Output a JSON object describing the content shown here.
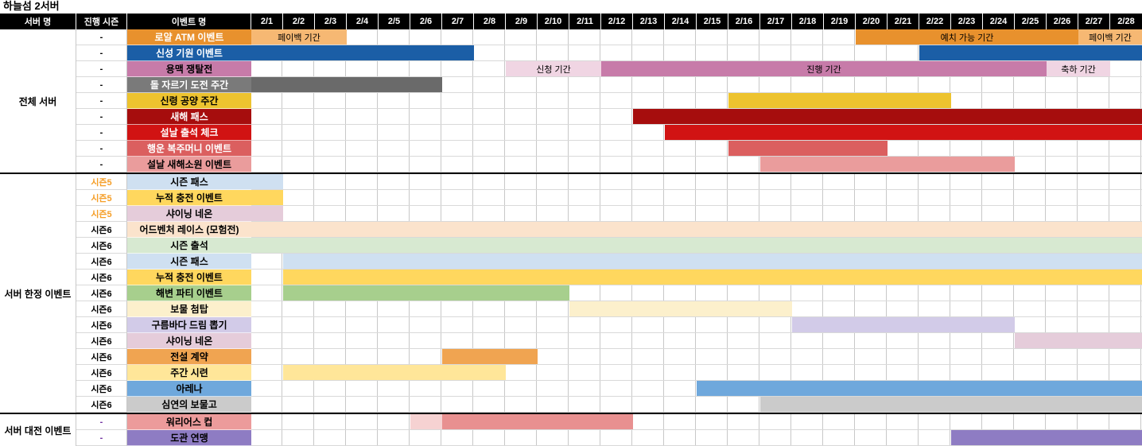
{
  "title": "하늘섬 2서버",
  "header": {
    "server": "서버 명",
    "season": "진행 시즌",
    "event": "이벤트 명"
  },
  "chart_data": {
    "type": "table",
    "subtype": "gantt",
    "day_column_width_days": 1,
    "date_columns": [
      "2/1",
      "2/2",
      "2/3",
      "2/4",
      "2/5",
      "2/6",
      "2/7",
      "2/8",
      "2/9",
      "2/10",
      "2/11",
      "2/12",
      "2/13",
      "2/14",
      "2/15",
      "2/16",
      "2/17",
      "2/18",
      "2/19",
      "2/20",
      "2/21",
      "2/22",
      "2/23",
      "2/24",
      "2/25",
      "2/26",
      "2/27",
      "2/28"
    ],
    "groups": [
      {
        "name": "전체 서버",
        "rows": [
          {
            "season": "-",
            "season_color": "#000000",
            "event": "로얄 ATM 이벤트",
            "label_bg": "#E8912D",
            "label_fg": "#FFFFFF",
            "bars": [
              {
                "start": 1,
                "end": 3,
                "color": "#F6B873",
                "label": "페이백 기간"
              },
              {
                "start": 20,
                "end": 26,
                "color": "#E8912D",
                "label": "예치 가능 기간"
              },
              {
                "start": 27,
                "end": 28,
                "color": "#F6B873",
                "label": "페이백 기간"
              }
            ]
          },
          {
            "season": "-",
            "season_color": "#000000",
            "event": "신성 기원 이벤트",
            "label_bg": "#1B5EA6",
            "label_fg": "#FFFFFF",
            "bars": [
              {
                "start": 1,
                "end": 7,
                "color": "#1B5EA6",
                "label": ""
              },
              {
                "start": 22,
                "end": 28,
                "color": "#1B5EA6",
                "label": ""
              }
            ]
          },
          {
            "season": "-",
            "season_color": "#000000",
            "event": "용맥 쟁탈전",
            "label_bg": "#C77BA9",
            "label_fg": "#000000",
            "bars": [
              {
                "start": 9,
                "end": 11,
                "color": "#F0D5E3",
                "label": "신청 기간"
              },
              {
                "start": 12,
                "end": 25,
                "color": "#C77BA9",
                "label": "진행 기간"
              },
              {
                "start": 26,
                "end": 27,
                "color": "#F0D5E3",
                "label": "축하 기간"
              }
            ]
          },
          {
            "season": "-",
            "season_color": "#000000",
            "event": "돌 자르기 도전 주간",
            "label_bg": "#7A7A7A",
            "label_fg": "#FFFFFF",
            "bars": [
              {
                "start": 1,
                "end": 6,
                "color": "#6A6A6A",
                "label": ""
              }
            ]
          },
          {
            "season": "-",
            "season_color": "#000000",
            "event": "신령 공양 주간",
            "label_bg": "#EDC32F",
            "label_fg": "#000000",
            "bars": [
              {
                "start": 16,
                "end": 22,
                "color": "#EDC32F",
                "label": ""
              }
            ]
          },
          {
            "season": "-",
            "season_color": "#000000",
            "event": "새해 패스",
            "label_bg": "#A60D0D",
            "label_fg": "#FFFFFF",
            "bars": [
              {
                "start": 13,
                "end": 28,
                "color": "#A60D0D",
                "label": ""
              }
            ]
          },
          {
            "season": "-",
            "season_color": "#000000",
            "event": "설날 출석 체크",
            "label_bg": "#D11313",
            "label_fg": "#FFFFFF",
            "bars": [
              {
                "start": 14,
                "end": 28,
                "color": "#D11313",
                "label": ""
              }
            ]
          },
          {
            "season": "-",
            "season_color": "#000000",
            "event": "행운 복주머니 이벤트",
            "label_bg": "#DB5F5F",
            "label_fg": "#FFFFFF",
            "bars": [
              {
                "start": 16,
                "end": 20,
                "color": "#DB5F5F",
                "label": ""
              }
            ]
          },
          {
            "season": "-",
            "season_color": "#000000",
            "event": "설날 새해소원 이벤트",
            "label_bg": "#EA9C9C",
            "label_fg": "#000000",
            "bars": [
              {
                "start": 17,
                "end": 24,
                "color": "#EA9C9C",
                "label": ""
              }
            ]
          }
        ]
      },
      {
        "name": "서버 한정 이벤트",
        "rows": [
          {
            "season": "시즌5",
            "season_color": "#F59E27",
            "event": "시즌 패스",
            "label_bg": "#CFE0F1",
            "label_fg": "#000000",
            "bars": [
              {
                "start": 1,
                "end": 1,
                "color": "#CFE0F1",
                "label": ""
              }
            ]
          },
          {
            "season": "시즌5",
            "season_color": "#F59E27",
            "event": "누적 충전 이벤트",
            "label_bg": "#FFD75E",
            "label_fg": "#000000",
            "bars": [
              {
                "start": 1,
                "end": 1,
                "color": "#FFD75E",
                "label": ""
              }
            ]
          },
          {
            "season": "시즌5",
            "season_color": "#F59E27",
            "event": "샤이닝 네온",
            "label_bg": "#E5CCDA",
            "label_fg": "#000000",
            "bars": [
              {
                "start": 1,
                "end": 1,
                "color": "#E5CCDA",
                "label": ""
              }
            ]
          },
          {
            "season": "시즌6",
            "season_color": "#000000",
            "event": "어드벤처 레이스 (모험전)",
            "label_bg": "#FBE3CC",
            "label_fg": "#000000",
            "bars": [
              {
                "start": 1,
                "end": 28,
                "color": "#FBE3CC",
                "label": ""
              }
            ]
          },
          {
            "season": "시즌6",
            "season_color": "#000000",
            "event": "시즌 출석",
            "label_bg": "#D7E9D1",
            "label_fg": "#000000",
            "bars": [
              {
                "start": 1,
                "end": 28,
                "color": "#D7E9D1",
                "label": ""
              }
            ]
          },
          {
            "season": "시즌6",
            "season_color": "#000000",
            "event": "시즌 패스",
            "label_bg": "#CFE0F1",
            "label_fg": "#000000",
            "bars": [
              {
                "start": 2,
                "end": 28,
                "color": "#CFE0F1",
                "label": ""
              }
            ]
          },
          {
            "season": "시즌6",
            "season_color": "#000000",
            "event": "누적 충전 이벤트",
            "label_bg": "#FFD75E",
            "label_fg": "#000000",
            "bars": [
              {
                "start": 2,
                "end": 28,
                "color": "#FFD75E",
                "label": ""
              }
            ]
          },
          {
            "season": "시즌6",
            "season_color": "#000000",
            "event": "해변 파티 이벤트",
            "label_bg": "#A7CF8D",
            "label_fg": "#000000",
            "bars": [
              {
                "start": 2,
                "end": 10,
                "color": "#A7CF8D",
                "label": ""
              }
            ]
          },
          {
            "season": "시즌6",
            "season_color": "#000000",
            "event": "보물 첨탑",
            "label_bg": "#FCF0CC",
            "label_fg": "#000000",
            "bars": [
              {
                "start": 11,
                "end": 17,
                "color": "#FCF0CC",
                "label": ""
              }
            ]
          },
          {
            "season": "시즌6",
            "season_color": "#000000",
            "event": "구름바다 드림 뽑기",
            "label_bg": "#D2CBE8",
            "label_fg": "#000000",
            "bars": [
              {
                "start": 18,
                "end": 24,
                "color": "#D2CBE8",
                "label": ""
              }
            ]
          },
          {
            "season": "시즌6",
            "season_color": "#000000",
            "event": "샤이닝 네온",
            "label_bg": "#E5CCDA",
            "label_fg": "#000000",
            "bars": [
              {
                "start": 25,
                "end": 28,
                "color": "#E5CCDA",
                "label": ""
              }
            ]
          },
          {
            "season": "시즌6",
            "season_color": "#000000",
            "event": "전설 계약",
            "label_bg": "#F0A451",
            "label_fg": "#000000",
            "bars": [
              {
                "start": 7,
                "end": 9,
                "color": "#F0A451",
                "label": ""
              }
            ]
          },
          {
            "season": "시즌6",
            "season_color": "#000000",
            "event": "주간 시련",
            "label_bg": "#FFE699",
            "label_fg": "#000000",
            "bars": [
              {
                "start": 2,
                "end": 8,
                "color": "#FFE699",
                "label": ""
              }
            ]
          },
          {
            "season": "시즌6",
            "season_color": "#000000",
            "event": "아레나",
            "label_bg": "#6FA8DC",
            "label_fg": "#000000",
            "bars": [
              {
                "start": 15,
                "end": 28,
                "color": "#6FA8DC",
                "label": ""
              }
            ]
          },
          {
            "season": "시즌6",
            "season_color": "#000000",
            "event": "심연의 보물고",
            "label_bg": "#CBCBCB",
            "label_fg": "#000000",
            "bars": [
              {
                "start": 17,
                "end": 28,
                "color": "#CBCBCB",
                "label": ""
              }
            ]
          }
        ]
      },
      {
        "name": "서버 대전 이벤트",
        "rows": [
          {
            "season": "-",
            "season_color": "#7030A0",
            "event": "워리어스 컵",
            "label_bg": "#EC9B9B",
            "label_fg": "#000000",
            "bars": [
              {
                "start": 6,
                "end": 6,
                "color": "#F6D2D2",
                "label": ""
              },
              {
                "start": 7,
                "end": 12,
                "color": "#E89090",
                "label": ""
              }
            ]
          },
          {
            "season": "-",
            "season_color": "#7030A0",
            "event": "도관 연맹",
            "label_bg": "#8E7CC3",
            "label_fg": "#000000",
            "bars": [
              {
                "start": 23,
                "end": 28,
                "color": "#8E7CC3",
                "label": ""
              }
            ]
          }
        ]
      }
    ]
  }
}
